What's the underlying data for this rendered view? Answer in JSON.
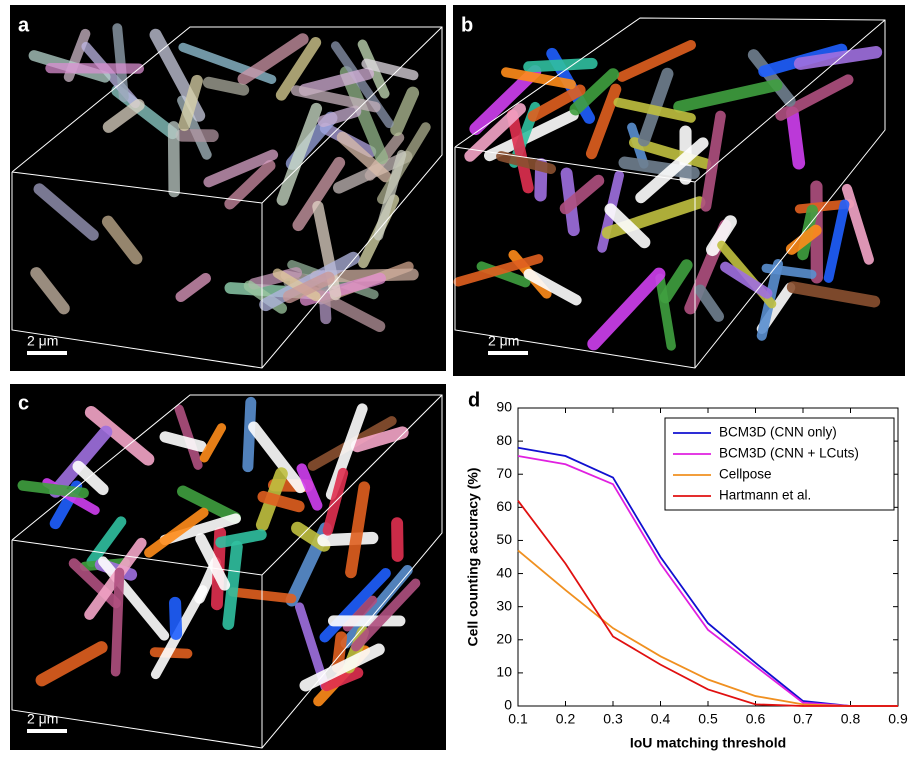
{
  "panels": [
    {
      "label": "a",
      "scale_bar": "2 μm"
    },
    {
      "label": "b",
      "scale_bar": "2 μm"
    },
    {
      "label": "c",
      "scale_bar": "2 μm"
    }
  ],
  "chart_data": {
    "type": "line",
    "panel_label": "d",
    "x_label": "IoU matching threshold",
    "y_label": "Cell counting accuracy (%)",
    "x": [
      0.1,
      0.2,
      0.3,
      0.4,
      0.5,
      0.6,
      0.7,
      0.8,
      0.9
    ],
    "xlim": [
      0.1,
      0.9
    ],
    "xticks": [
      0.1,
      0.2,
      0.3,
      0.4,
      0.5,
      0.6,
      0.7,
      0.8,
      0.9
    ],
    "ylim": [
      0,
      90
    ],
    "yticks": [
      0,
      10,
      20,
      30,
      40,
      50,
      60,
      70,
      80,
      90
    ],
    "legend": "upper right",
    "series": [
      {
        "name": "BCM3D (CNN only)",
        "color": "#1010d0",
        "values": [
          78,
          75.5,
          69,
          45,
          25,
          13,
          1.5,
          0,
          0
        ]
      },
      {
        "name": "BCM3D (CNN + LCuts)",
        "color": "#e020e0",
        "values": [
          75.5,
          73,
          67,
          43,
          23,
          12,
          1,
          0,
          0
        ]
      },
      {
        "name": "Cellpose",
        "color": "#f09020",
        "values": [
          47,
          35,
          23.5,
          15,
          8,
          3,
          0.5,
          0,
          0
        ]
      },
      {
        "name": "Hartmann et al.",
        "color": "#e01010",
        "values": [
          62,
          43,
          21,
          12.5,
          5,
          0.5,
          0,
          0,
          0
        ]
      }
    ]
  }
}
